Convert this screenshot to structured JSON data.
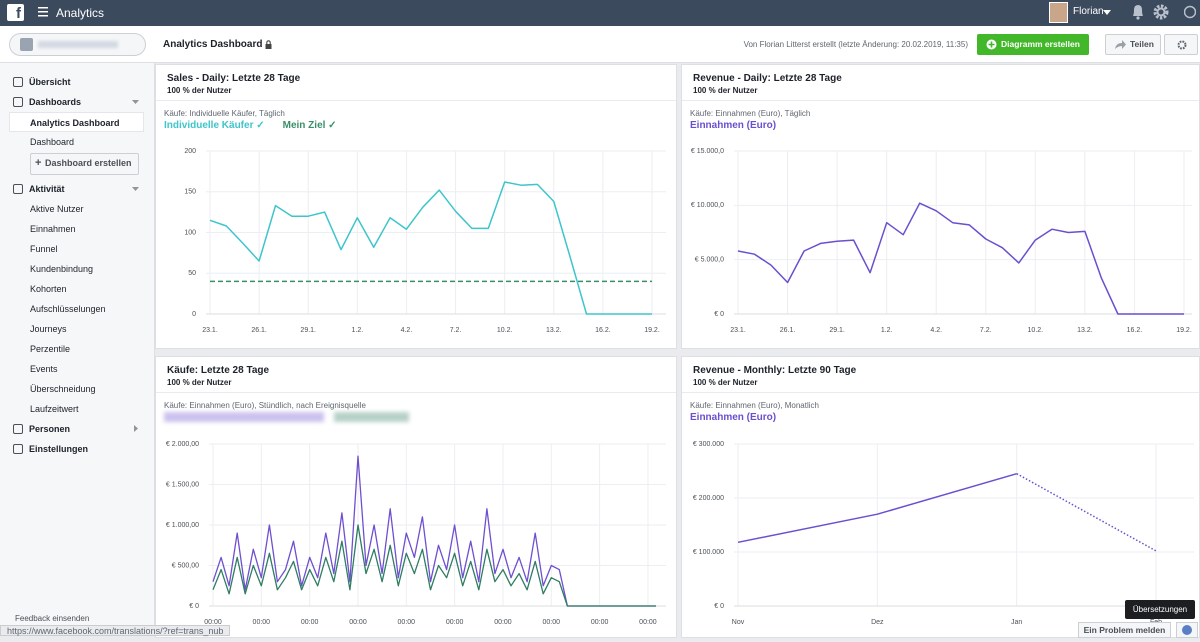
{
  "topbar": {
    "app": "Analytics",
    "user": "Florian"
  },
  "header": {
    "title": "Analytics Dashboard",
    "meta": "Von Florian Litterst erstellt (letzte Änderung: 20.02.2019, 11:35)",
    "create": "Diagramm erstellen",
    "share": "Teilen"
  },
  "sidebar": {
    "items": [
      {
        "label": "Übersicht",
        "level": 0
      },
      {
        "label": "Dashboards",
        "level": 0,
        "arrow": "down"
      },
      {
        "label": "Analytics Dashboard",
        "level": 1,
        "selected": true
      },
      {
        "label": "Dashboard",
        "level": 1
      },
      {
        "label": "Dashboard erstellen",
        "level": 1,
        "button": true
      },
      {
        "label": "Aktivität",
        "level": 0,
        "arrow": "down"
      },
      {
        "label": "Aktive Nutzer",
        "level": 1
      },
      {
        "label": "Einnahmen",
        "level": 1
      },
      {
        "label": "Funnel",
        "level": 1
      },
      {
        "label": "Kundenbindung",
        "level": 1
      },
      {
        "label": "Kohorten",
        "level": 1
      },
      {
        "label": "Aufschlüsselungen",
        "level": 1
      },
      {
        "label": "Journeys",
        "level": 1
      },
      {
        "label": "Perzentile",
        "level": 1
      },
      {
        "label": "Events",
        "level": 1
      },
      {
        "label": "Überschneidung",
        "level": 1
      },
      {
        "label": "Laufzeitwert",
        "level": 1
      },
      {
        "label": "Personen",
        "level": 0,
        "arrow": "right"
      },
      {
        "label": "Einstellungen",
        "level": 0
      }
    ],
    "feedback": "Feedback einsenden"
  },
  "status_url": "https://www.facebook.com/translations/?ref=trans_nub",
  "footer": {
    "tooltip": "Übersetzungen",
    "report": "Ein Problem melden"
  },
  "panels": [
    {
      "title": "Sales - Daily: Letzte 28 Tage",
      "subtitle": "100 % der Nutzer",
      "meta": "Käufe: Individuelle Käufer, Täglich",
      "chart": {
        "type": "line",
        "categories": [
          "23.1.",
          null,
          null,
          "26.1.",
          null,
          null,
          "29.1.",
          null,
          null,
          "1.2.",
          null,
          null,
          "4.2.",
          null,
          null,
          "7.2.",
          null,
          null,
          "10.2.",
          null,
          null,
          "13.2.",
          null,
          null,
          "16.2.",
          null,
          null,
          "19.2."
        ],
        "ylim": [
          0,
          200
        ],
        "yticks": [
          0,
          50,
          100,
          150,
          200
        ],
        "grid": true,
        "series": [
          {
            "name": "Individuelle Käufer",
            "color": "#3ec5cc",
            "values": [
              115,
              108,
              87,
              65,
              133,
              120,
              120,
              125,
              79,
              118,
              82,
              118,
              104,
              131,
              152,
              126,
              105,
              105,
              162,
              158,
              159,
              138,
              70,
              0,
              0,
              0,
              0,
              0
            ]
          },
          {
            "name": "Mein Ziel",
            "color": "#3a8f6a",
            "dashed": true,
            "values": [
              40,
              40,
              40,
              40,
              40,
              40,
              40,
              40,
              40,
              40,
              40,
              40,
              40,
              40,
              40,
              40,
              40,
              40,
              40,
              40,
              40,
              40,
              40,
              40,
              40,
              40,
              40,
              40
            ]
          }
        ]
      }
    },
    {
      "title": "Revenue - Daily: Letzte 28 Tage",
      "subtitle": "100 % der Nutzer",
      "meta": "Käufe: Einnahmen (Euro), Täglich",
      "chart": {
        "type": "line",
        "categories": [
          "23.1.",
          null,
          null,
          "26.1.",
          null,
          null,
          "29.1.",
          null,
          null,
          "1.2.",
          null,
          null,
          "4.2.",
          null,
          null,
          "7.2.",
          null,
          null,
          "10.2.",
          null,
          null,
          "13.2.",
          null,
          null,
          "16.2.",
          null,
          null,
          "19.2."
        ],
        "ylim": [
          0,
          15000
        ],
        "yticks": [
          {
            "value": 0,
            "label": "€ 0"
          },
          {
            "value": 5000,
            "label": "€ 5.000,0"
          },
          {
            "value": 10000,
            "label": "€ 10.000,0"
          },
          {
            "value": 15000,
            "label": "€ 15.000,0"
          }
        ],
        "grid": true,
        "series": [
          {
            "name": "Einnahmen (Euro)",
            "color": "#6a4fcf",
            "values": [
              5800,
              5500,
              4500,
              2900,
              5800,
              6500,
              6700,
              6800,
              3800,
              8400,
              7300,
              10200,
              9500,
              8400,
              8200,
              6900,
              6100,
              4700,
              6800,
              7800,
              7500,
              7600,
              3300,
              0,
              0,
              0,
              0,
              0
            ]
          }
        ]
      }
    },
    {
      "title": "Käufe: Letzte 28 Tage",
      "subtitle": "100 % der Nutzer",
      "meta": "Käufe: Einnahmen (Euro), Stündlich, nach Ereignisquelle",
      "chart": {
        "type": "line",
        "categories": [
          "00:00",
          null,
          null,
          null,
          null,
          null,
          "00:00",
          null,
          null,
          null,
          null,
          null,
          "00:00",
          null,
          null,
          null,
          null,
          null,
          "00:00",
          null,
          null,
          null,
          null,
          null,
          "00:00",
          null,
          null,
          null,
          null,
          null,
          "00:00",
          null,
          null,
          null,
          null,
          null,
          "00:00",
          null,
          null,
          null,
          null,
          null,
          "00:00",
          null,
          null,
          null,
          null,
          null,
          "00:00",
          null,
          null,
          null,
          null,
          null,
          "00:00",
          null
        ],
        "ylim": [
          0,
          2000
        ],
        "yticks": [
          {
            "value": 0,
            "label": "€ 0"
          },
          {
            "value": 500,
            "label": "€ 500,00"
          },
          {
            "value": 1000,
            "label": "€ 1.000,00"
          },
          {
            "value": 1500,
            "label": "€ 1.500,00"
          },
          {
            "value": 2000,
            "label": "€ 2.000,00"
          }
        ],
        "grid": true,
        "series": [
          {
            "color": "#6f4fd0",
            "values": [
              300,
              600,
              250,
              900,
              200,
              700,
              350,
              1000,
              300,
              450,
              800,
              250,
              600,
              350,
              900,
              400,
              1150,
              300,
              1850,
              500,
              1000,
              400,
              1200,
              350,
              900,
              600,
              1100,
              300,
              750,
              450,
              1000,
              350,
              800,
              300,
              1200,
              400,
              700,
              350,
              600,
              300,
              900,
              250,
              500,
              450,
              0,
              0,
              0,
              0,
              0,
              0,
              0,
              0,
              0,
              0,
              0,
              0
            ]
          },
          {
            "color": "#2f7d62",
            "values": [
              200,
              450,
              150,
              600,
              150,
              500,
              250,
              650,
              200,
              350,
              550,
              200,
              450,
              250,
              600,
              300,
              800,
              200,
              1000,
              400,
              700,
              300,
              750,
              250,
              650,
              400,
              700,
              200,
              500,
              350,
              650,
              250,
              550,
              200,
              700,
              300,
              450,
              250,
              400,
              200,
              550,
              150,
              350,
              300,
              0,
              0,
              0,
              0,
              0,
              0,
              0,
              0,
              0,
              0,
              0,
              0
            ]
          }
        ]
      }
    },
    {
      "title": "Revenue - Monthly: Letzte 90 Tage",
      "subtitle": "100 % der Nutzer",
      "meta": "Käufe: Einnahmen (Euro), Monatlich",
      "chart": {
        "type": "line",
        "categories": [
          "Nov",
          "Dez",
          "Jan",
          "Feb"
        ],
        "ylim": [
          0,
          300000
        ],
        "yticks": [
          {
            "value": 0,
            "label": "€ 0"
          },
          {
            "value": 100000,
            "label": "€ 100.000"
          },
          {
            "value": 200000,
            "label": "€ 200.000"
          },
          {
            "value": 300000,
            "label": "€ 300.000"
          }
        ],
        "grid": true,
        "series": [
          {
            "name": "Einnahmen (Euro)",
            "color": "#6a4fcf",
            "dashed_last_segment": true,
            "values": [
              118000,
              170000,
              245000,
              102000
            ]
          }
        ]
      }
    }
  ]
}
